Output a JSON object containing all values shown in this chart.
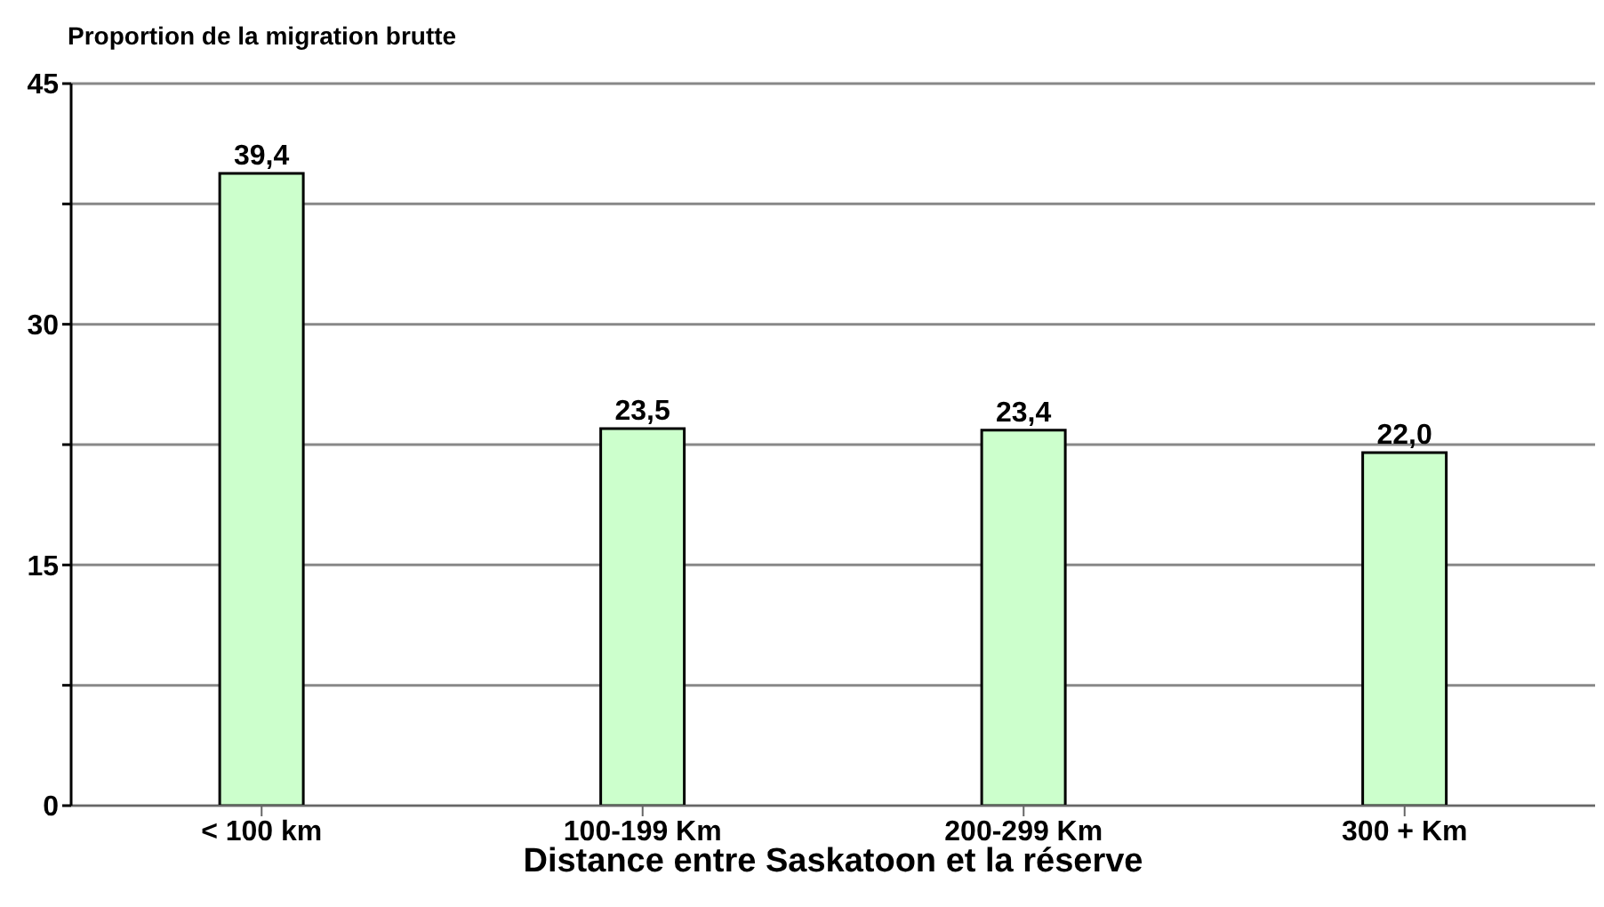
{
  "chart_data": {
    "type": "bar",
    "title": "Proportion de la migration brutte",
    "xlabel": "Distance entre Saskatoon et la réserve",
    "categories": [
      "< 100 km",
      "100-199 Km",
      "200-299 Km",
      "300 + Km"
    ],
    "values": [
      39.4,
      23.5,
      23.4,
      22.0
    ],
    "value_labels": [
      "39,4",
      "23,5",
      "23,4",
      "22,0"
    ],
    "color": "#ccffcc",
    "ylim": [
      0,
      45
    ],
    "yticks": [
      0,
      {
        "value": 7.5,
        "label": null
      },
      15,
      {
        "value": 22.5,
        "label": null
      },
      30,
      {
        "value": 37.5,
        "label": null
      },
      45
    ],
    "grid": "y"
  }
}
